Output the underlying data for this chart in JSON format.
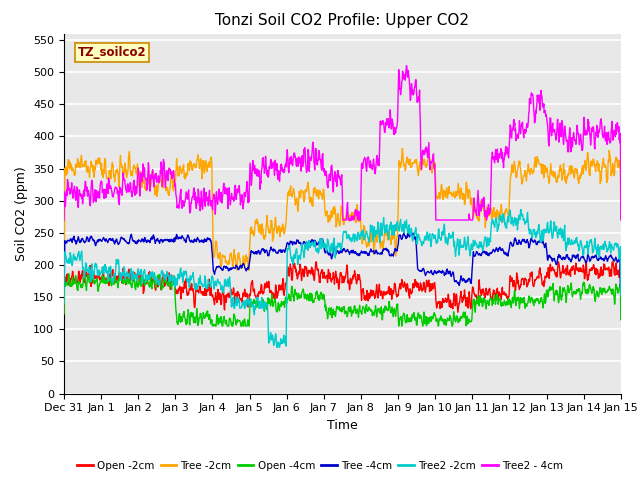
{
  "title": "Tonzi Soil CO2 Profile: Upper CO2",
  "xlabel": "Time",
  "ylabel": "Soil CO2 (ppm)",
  "ylim": [
    0,
    560
  ],
  "yticks": [
    0,
    50,
    100,
    150,
    200,
    250,
    300,
    350,
    400,
    450,
    500,
    550
  ],
  "date_labels": [
    "Dec 31",
    "Jan 1",
    "Jan 2",
    "Jan 3",
    "Jan 4",
    "Jan 5",
    "Jan 6",
    "Jan 7",
    "Jan 8",
    "Jan 9",
    "Jan 10",
    "Jan 11",
    "Jan 12",
    "Jan 13",
    "Jan 14",
    "Jan 15"
  ],
  "legend_label": "TZ_soilco2",
  "legend_text_color": "#8B0000",
  "legend_box_facecolor": "#FFFFC0",
  "legend_box_edgecolor": "#CC8800",
  "series": [
    {
      "name": "Open -2cm",
      "color": "#FF0000"
    },
    {
      "name": "Tree -2cm",
      "color": "#FFA500"
    },
    {
      "name": "Open -4cm",
      "color": "#00CC00"
    },
    {
      "name": "Tree -4cm",
      "color": "#0000CC"
    },
    {
      "name": "Tree2 -2cm",
      "color": "#00CCCC"
    },
    {
      "name": "Tree2 - 4cm",
      "color": "#FF00FF"
    }
  ],
  "bg_color": "#E8E8E8",
  "grid_color": "#FFFFFF",
  "title_fontsize": 11,
  "axis_fontsize": 9,
  "tick_fontsize": 8
}
